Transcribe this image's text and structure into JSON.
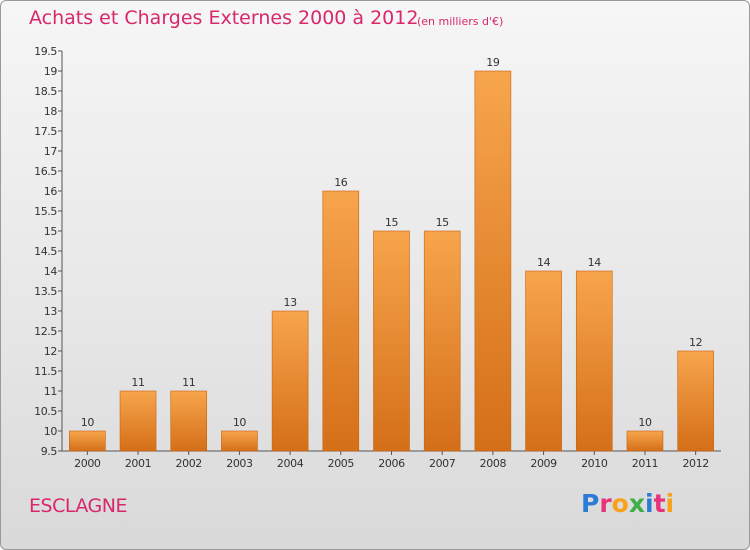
{
  "header": {
    "title": "Achats et Charges Externes 2000 à 2012",
    "subtitle": "(en milliers d'€)"
  },
  "footer": {
    "commune": "ESCLAGNE",
    "logo_text": "Proxiti",
    "logo_colors": [
      "#2b7bd6",
      "#e8327c",
      "#f7a21b",
      "#3fae49",
      "#2b7bd6",
      "#e8327c",
      "#f7a21b"
    ]
  },
  "colors": {
    "bar_light": "#f7a54c",
    "bar_dark": "#d46f18",
    "text": "#d8286a"
  },
  "chart_data": {
    "type": "bar",
    "categories": [
      "2000",
      "2001",
      "2002",
      "2003",
      "2004",
      "2005",
      "2006",
      "2007",
      "2008",
      "2009",
      "2010",
      "2011",
      "2012"
    ],
    "values": [
      10,
      11,
      11,
      10,
      13,
      16,
      15,
      15,
      19,
      14,
      14,
      10,
      12
    ],
    "data_labels": [
      "10",
      "11",
      "11",
      "10",
      "13",
      "16",
      "15",
      "15",
      "19",
      "14",
      "14",
      "10",
      "12"
    ],
    "ylim": [
      9.5,
      19.5
    ],
    "yticks": [
      "9.5",
      "10",
      "10.5",
      "11",
      "11.5",
      "12",
      "12.5",
      "13",
      "13.5",
      "14",
      "14.5",
      "15",
      "15.5",
      "16",
      "16.5",
      "17",
      "17.5",
      "18",
      "18.5",
      "19",
      "19.5"
    ],
    "grid": false,
    "legend": "none"
  }
}
